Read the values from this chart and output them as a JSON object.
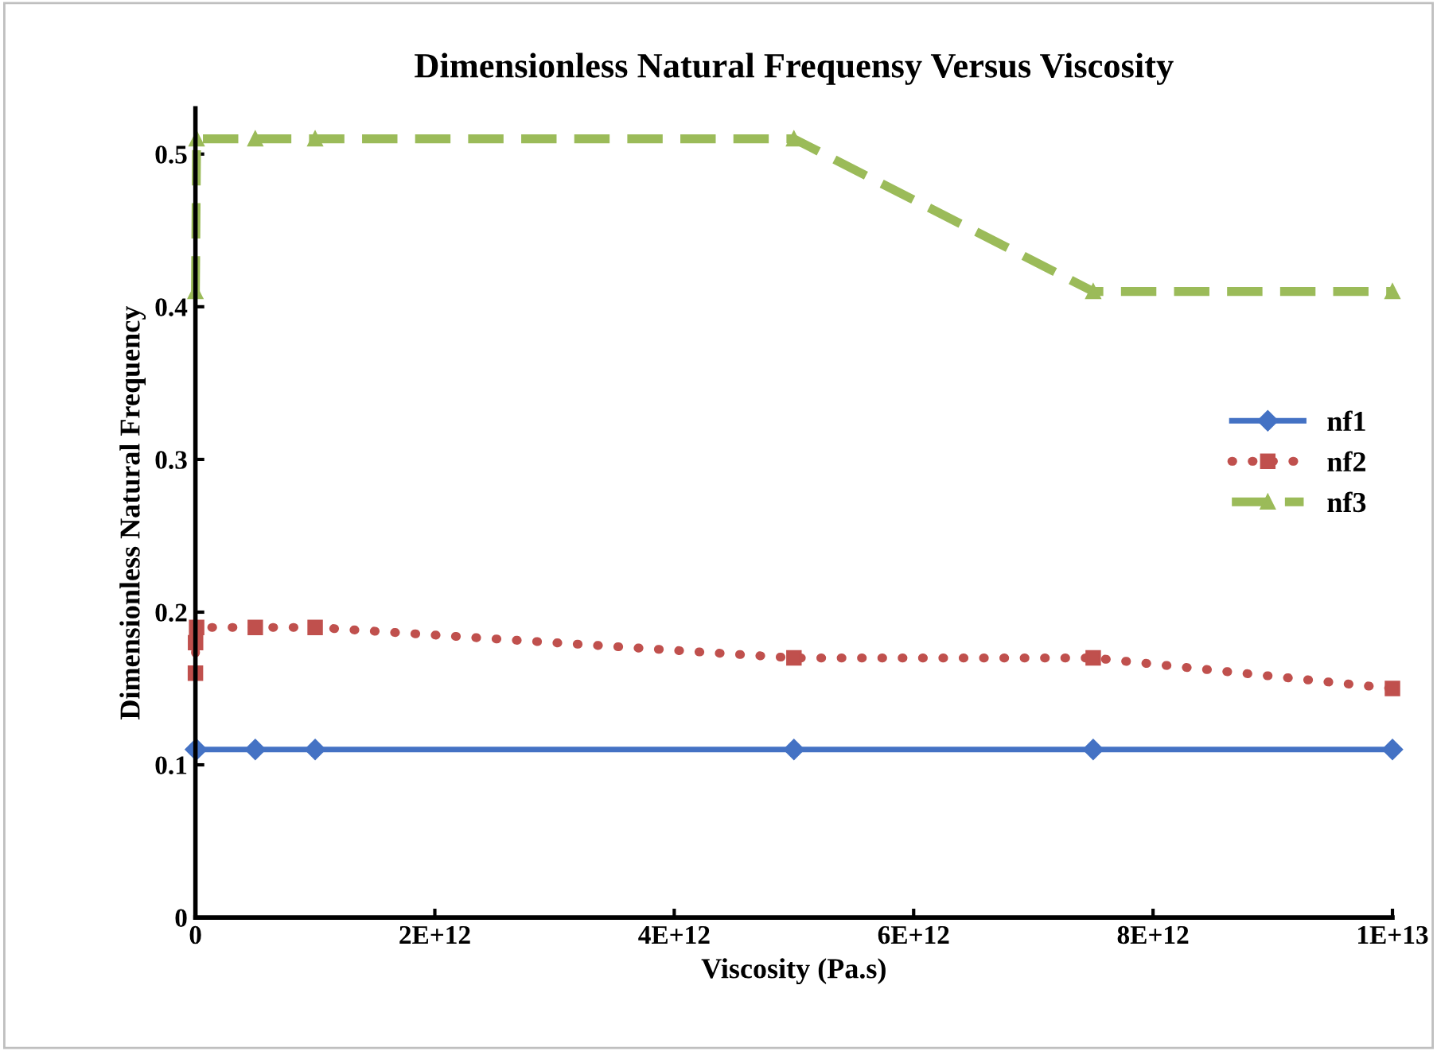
{
  "chart_data": {
    "type": "line",
    "title": "Dimensionless Natural Frequensy Versus Viscosity",
    "xlabel": "Viscosity (Pa.s)",
    "ylabel": "Dimensionless Natural Frequency",
    "xlim": [
      0,
      10000000000000.0
    ],
    "xticks": [
      0,
      {
        "value": 2000000000000.0,
        "label": "2E+12"
      },
      {
        "value": 4000000000000.0,
        "label": "4E+12"
      },
      {
        "value": 6000000000000.0,
        "label": "6E+12"
      },
      {
        "value": 8000000000000.0,
        "label": "8E+12"
      },
      {
        "value": 10000000000000.0,
        "label": "1E+13"
      }
    ],
    "ylim": [
      0,
      0.53
    ],
    "yticks": [
      0,
      0.1,
      0.2,
      0.3,
      0.4,
      0.5
    ],
    "grid": false,
    "legend": "right",
    "series": [
      {
        "name": "nf1",
        "color": "#4472c4",
        "marker": "diamond",
        "line_style": "solid",
        "x": [
          0,
          10000000000.0,
          500000000000.0,
          1000000000000.0,
          5000000000000.0,
          7500000000000.0,
          10000000000000.0
        ],
        "values": [
          0.11,
          0.11,
          0.11,
          0.11,
          0.11,
          0.11,
          0.11
        ]
      },
      {
        "name": "nf2",
        "color": "#c0504d",
        "marker": "square",
        "line_style": "dotted",
        "x": [
          0,
          1000000000.0,
          10000000000.0,
          500000000000.0,
          1000000000000.0,
          5000000000000.0,
          7500000000000.0,
          10000000000000.0
        ],
        "values": [
          0.16,
          0.18,
          0.19,
          0.19,
          0.19,
          0.17,
          0.17,
          0.15
        ]
      },
      {
        "name": "nf3",
        "color": "#9bbb59",
        "marker": "triangle",
        "line_style": "dashed",
        "x": [
          0,
          10000000000.0,
          500000000000.0,
          1000000000000.0,
          5000000000000.0,
          7500000000000.0,
          10000000000000.0
        ],
        "values": [
          0.41,
          0.51,
          0.51,
          0.51,
          0.51,
          0.41,
          0.41
        ]
      }
    ]
  }
}
